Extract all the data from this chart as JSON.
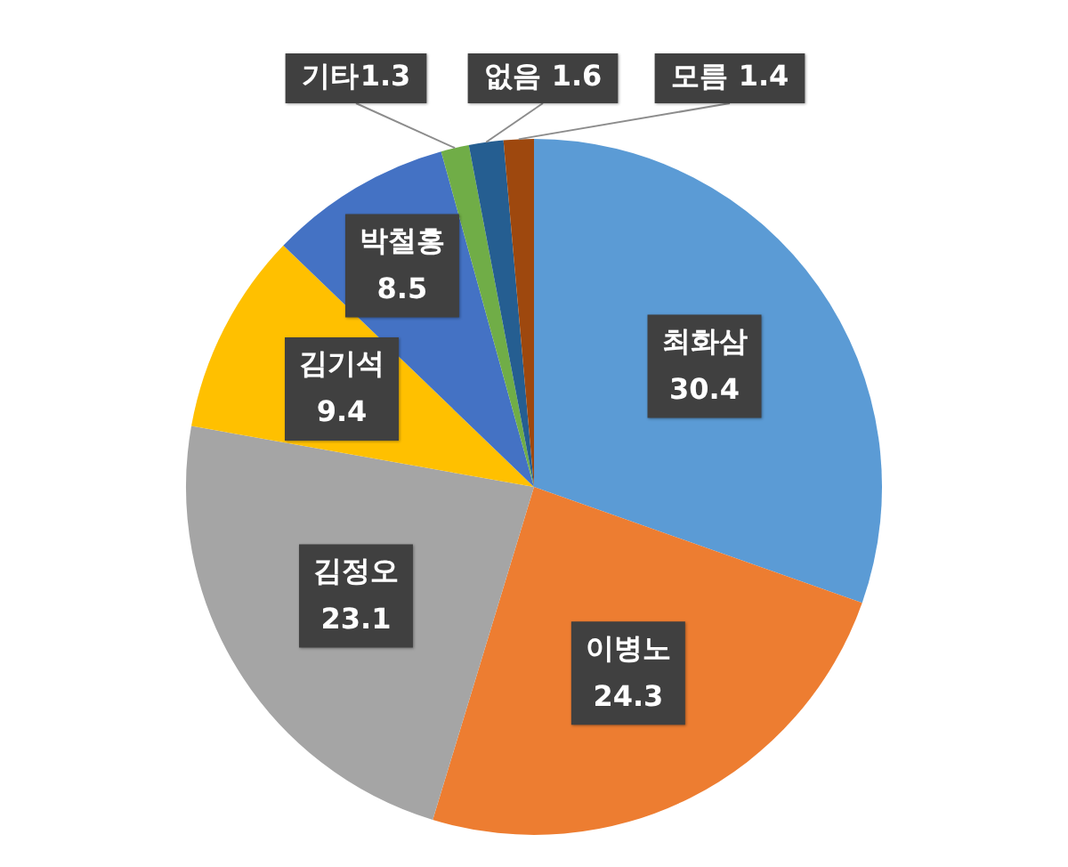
{
  "chart_data": {
    "type": "pie",
    "categories": [
      "최화삼",
      "이병노",
      "김정오",
      "김기석",
      "박철홍",
      "기타",
      "없음",
      "모름"
    ],
    "values": [
      30.4,
      24.3,
      23.1,
      9.4,
      8.5,
      1.3,
      1.6,
      1.4
    ],
    "colors": [
      "#5b9bd5",
      "#ed7d31",
      "#a5a5a5",
      "#ffc000",
      "#4472c4",
      "#70ad47",
      "#255e91",
      "#9e480e"
    ],
    "data_labels": true,
    "legend": false
  }
}
